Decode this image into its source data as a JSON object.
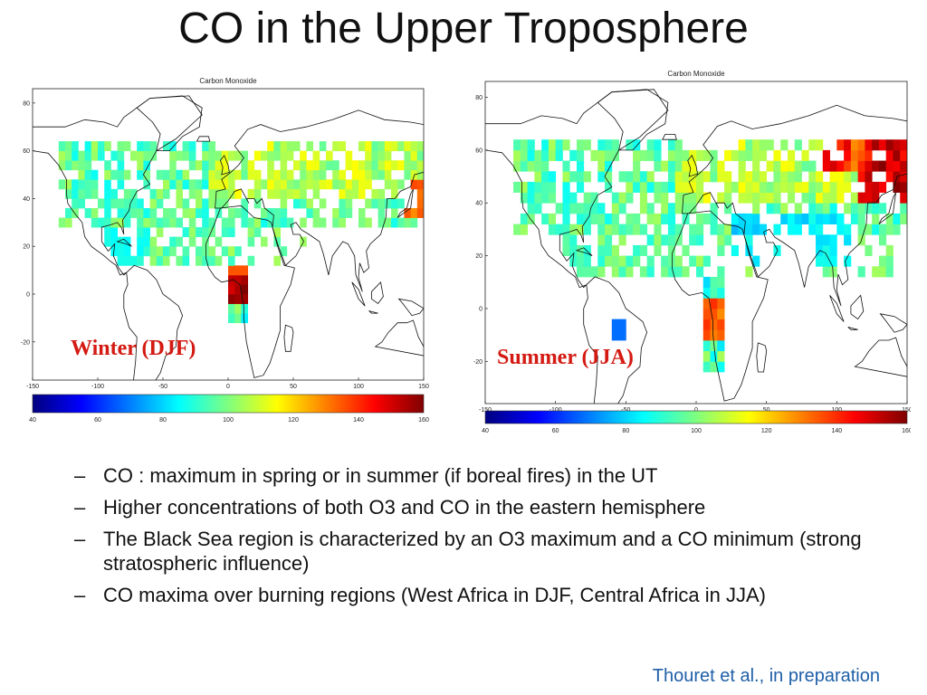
{
  "slide": {
    "title": "CO in the Upper Troposphere",
    "citation": "Thouret et al., in preparation"
  },
  "maps": {
    "winter": {
      "plot_title": "Carbon Monoxide",
      "season_label": "Winter (DJF)",
      "lon_ticks": [
        "-150",
        "-100",
        "-50",
        "0",
        "50",
        "100",
        "150"
      ],
      "lat_ticks": [
        "80",
        "60",
        "40",
        "20",
        "0",
        "-20"
      ],
      "colorbar_ticks": [
        "40",
        "60",
        "80",
        "100",
        "120",
        "140",
        "160"
      ]
    },
    "summer": {
      "plot_title": "Carbon Monoxide",
      "season_label": "Summer (JJA)",
      "lon_ticks": [
        "-150",
        "-100",
        "-50",
        "0",
        "50",
        "100",
        "150"
      ],
      "lat_ticks": [
        "80",
        "60",
        "40",
        "20",
        "0",
        "-20"
      ],
      "colorbar_ticks": [
        "40",
        "60",
        "80",
        "100",
        "120",
        "140",
        "160"
      ]
    }
  },
  "colors": {
    "title_text": "#111111",
    "season_label": "#d41a12",
    "citation": "#1f5fa8",
    "colormap": [
      "#00007f",
      "#0000ff",
      "#007fff",
      "#00ffff",
      "#7fff7f",
      "#ffff00",
      "#ff7f00",
      "#ff0000",
      "#7f0000"
    ]
  },
  "bullets": [
    "CO : maximum in spring or in summer (if boreal fires) in the UT",
    "Higher concentrations of both O3 and CO in the eastern hemisphere",
    "The Black Sea region is characterized by an O3 maximum and a CO minimum (strong stratospheric influence)",
    "CO maxima over burning regions (West Africa in DJF, Central Africa in JJA)"
  ],
  "bullet_marker": "–"
}
